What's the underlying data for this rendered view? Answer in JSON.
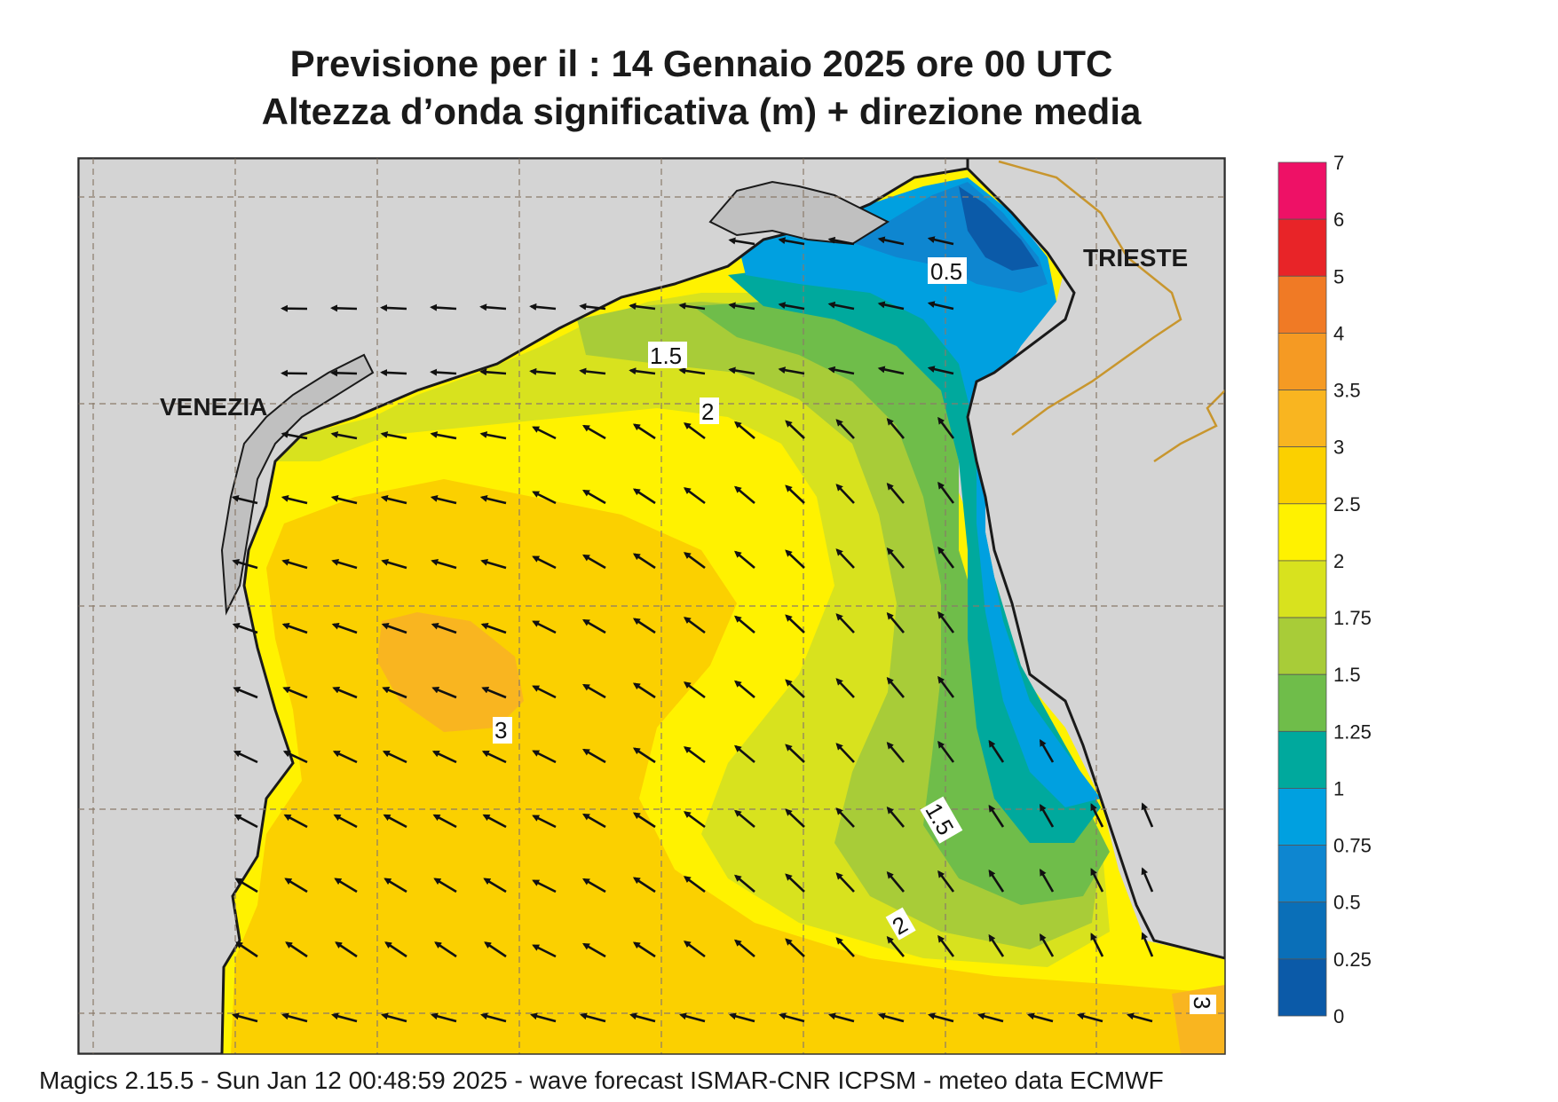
{
  "title": {
    "line1": "Previsione per il  :  14  Gennaio  2025   ore 00 UTC",
    "line2": "Altezza d’onda significativa (m) + direzione media"
  },
  "cities": {
    "venezia": "VENEZIA",
    "trieste": "TRIESTE"
  },
  "contour_labels": [
    "0.5",
    "1.5",
    "2",
    "3",
    "1.5",
    "2",
    "3"
  ],
  "legend": {
    "levels": [
      "7",
      "6",
      "5",
      "4",
      "3.5",
      "3",
      "2.5",
      "2",
      "1.75",
      "1.5",
      "1.25",
      "1",
      "0.75",
      "0.5",
      "0.25",
      "0"
    ],
    "colors": [
      "#ee1166",
      "#e82428",
      "#f07a25",
      "#f59a23",
      "#f9b520",
      "#fbd000",
      "#fff200",
      "#d8e21e",
      "#a8cc38",
      "#6fbd4a",
      "#00a99d",
      "#00a0e0",
      "#0e86d0",
      "#0a6fb8",
      "#0b5aa8"
    ]
  },
  "footer": "Magics 2.15.5 - Sun Jan 12 00:48:59 2025 - wave forecast  ISMAR-CNR  ICPSM - meteo data    ECMWF",
  "colors": {
    "land": "#d4d4d4",
    "coast": "#1a1a1a",
    "border": "#c8962e",
    "arrow": "#111111"
  }
}
